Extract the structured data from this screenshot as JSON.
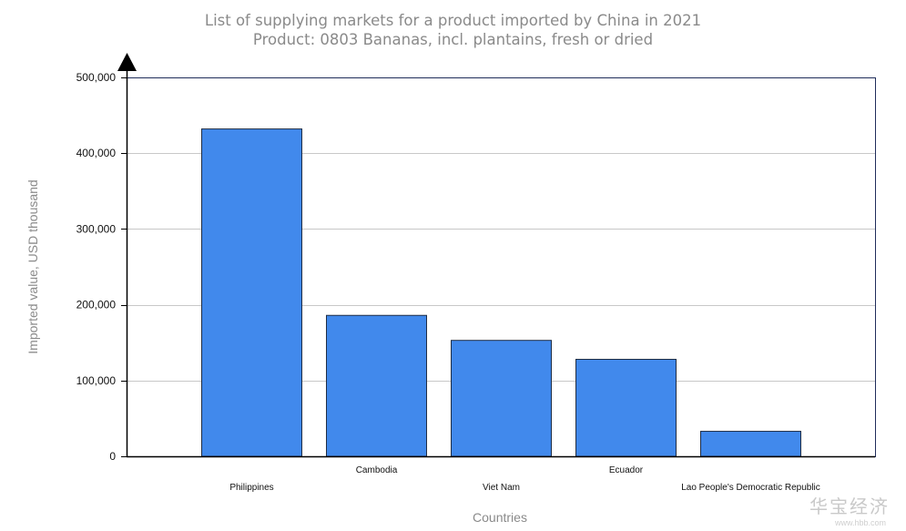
{
  "chart_data": {
    "type": "bar",
    "title": "List of supplying markets for a product imported by China in 2021",
    "subtitle": "Product: 0803 Bananas, incl. plantains, fresh or dried",
    "xlabel": "Countries",
    "ylabel": "Imported value, USD thousand",
    "categories": [
      "Philippines",
      "Cambodia",
      "Viet Nam",
      "Ecuador",
      "Lao People's Democratic Republic"
    ],
    "values": [
      432000,
      186000,
      153000,
      128000,
      33000
    ],
    "ylim": [
      0,
      500000
    ],
    "yticks": [
      0,
      100000,
      200000,
      300000,
      400000,
      500000
    ],
    "ytick_labels": [
      "0",
      "100,000",
      "200,000",
      "300,000",
      "400,000",
      "500,000"
    ],
    "grid": true,
    "legend": "none",
    "colors": {
      "bar": "#4189ec",
      "bar_edge": "#1f2d44",
      "grid": "#c8c8c8",
      "frame": "#1f2d5a"
    }
  },
  "watermark": {
    "text": "华宝经济",
    "sub": "www.hbb.com"
  }
}
